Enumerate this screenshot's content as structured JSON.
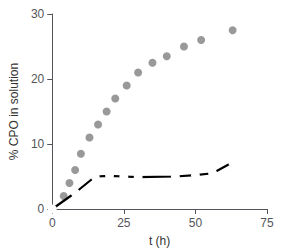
{
  "chart_data": {
    "type": "scatter",
    "xlabel": "t (h)",
    "ylabel": "% CPO in solution",
    "xlim": [
      0,
      75
    ],
    "ylim": [
      0,
      30
    ],
    "xticks": [
      0,
      25,
      50,
      75
    ],
    "yticks": [
      0,
      10,
      20,
      30
    ],
    "grid": false,
    "series": [
      {
        "type": "scatter",
        "color": "#808080",
        "marker": "circle",
        "x": [
          0,
          4,
          6,
          8,
          10,
          13,
          16,
          19,
          22,
          26,
          30,
          35,
          40,
          46,
          52,
          63
        ],
        "values": [
          0,
          2,
          4,
          6,
          8.5,
          11,
          13,
          15,
          17,
          19,
          21,
          22.5,
          23.5,
          25,
          26,
          27.5
        ]
      },
      {
        "type": "line",
        "color": "#000000",
        "marker": "hollow circle",
        "x": [
          0,
          8,
          15,
          20,
          25,
          30,
          43,
          50,
          56,
          63
        ],
        "values": [
          0,
          2.5,
          5.0,
          5.1,
          5.0,
          4.9,
          5.0,
          5.2,
          5.5,
          7.2
        ]
      }
    ]
  }
}
